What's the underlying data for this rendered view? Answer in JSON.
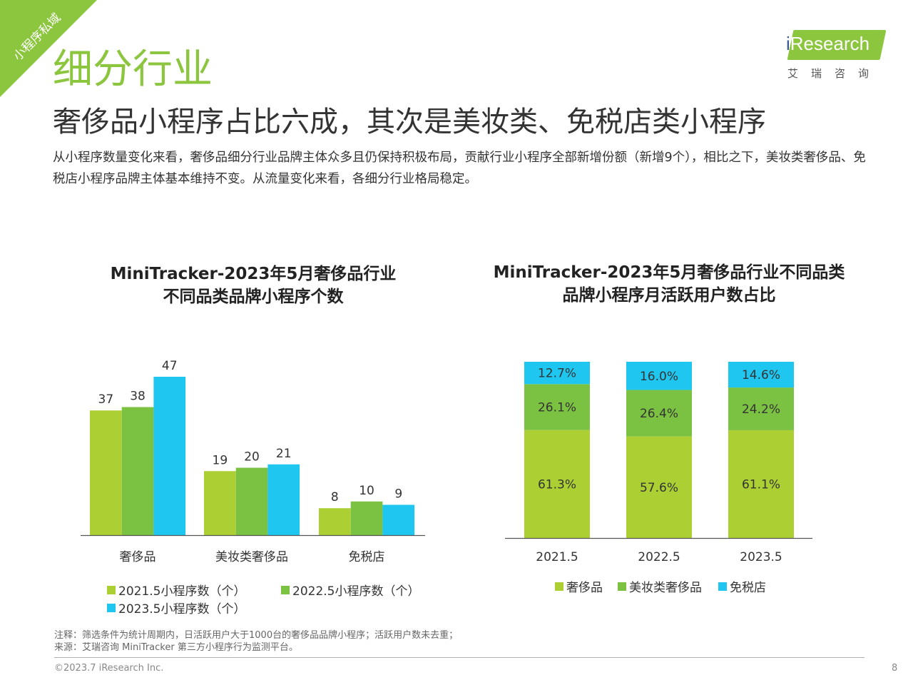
{
  "corner_tag": "小程序私域",
  "section_title": "细分行业",
  "subtitle": "奢侈品小程序占比六成，其次是美妆类、免税店类小程序",
  "description": "从小程序数量变化来看，奢侈品细分行业品牌主体众多且仍保持积极布局，贡献行业小程序全部新增份额（新增9个），相比之下，美妆类奢侈品、免税店小程序品牌主体基本维持不变。从流量变化来看，各细分行业格局稳定。",
  "logo": {
    "brand_i": "i",
    "brand_rest": "Research",
    "sub": "艾瑞咨询"
  },
  "colors": {
    "green_light": "#acd033",
    "green_mid": "#7cc242",
    "cyan": "#1fc6f0",
    "accent": "#8cc63f"
  },
  "chart_data": [
    {
      "type": "bar",
      "title_line1": "MiniTracker-2023年5月奢侈品行业",
      "title_line2": "不同品类品牌小程序个数",
      "categories": [
        "奢侈品",
        "美妆类奢侈品",
        "免税店"
      ],
      "series": [
        {
          "name": "2021.5小程序数（个）",
          "values": [
            37,
            19,
            8
          ],
          "color": "#acd033"
        },
        {
          "name": "2022.5小程序数（个）",
          "values": [
            38,
            20,
            10
          ],
          "color": "#7cc242"
        },
        {
          "name": "2023.5小程序数（个）",
          "values": [
            47,
            21,
            9
          ],
          "color": "#1fc6f0"
        }
      ],
      "ylim": [
        0,
        50
      ],
      "grid": false,
      "legend_position": "bottom"
    },
    {
      "type": "bar",
      "stacked": true,
      "title_line1": "MiniTracker-2023年5月奢侈品行业不同品类",
      "title_line2": "品牌小程序月活跃用户数占比",
      "categories": [
        "2021.5",
        "2022.5",
        "2023.5"
      ],
      "series": [
        {
          "name": "奢侈品",
          "values": [
            61.3,
            57.6,
            61.1
          ],
          "labels": [
            "61.3%",
            "57.6%",
            "61.1%"
          ],
          "color": "#acd033"
        },
        {
          "name": "美妆类奢侈品",
          "values": [
            26.1,
            26.4,
            24.2
          ],
          "labels": [
            "26.1%",
            "26.4%",
            "24.2%"
          ],
          "color": "#7cc242"
        },
        {
          "name": "免税店",
          "values": [
            12.7,
            16.0,
            14.6
          ],
          "labels": [
            "12.7%",
            "16.0%",
            "14.6%"
          ],
          "color": "#1fc6f0"
        }
      ],
      "ylim": [
        0,
        100
      ],
      "grid": false,
      "legend_position": "bottom"
    }
  ],
  "footnote_line1": "注释：筛选条件为统计周期内，日活跃用户大于1000台的奢侈品品牌小程序；活跃用户数未去重；",
  "footnote_line2": "来源：艾瑞咨询 MiniTracker 第三方小程序行为监测平台。",
  "copyright": "©2023.7 iResearch Inc.",
  "page_number": "8"
}
